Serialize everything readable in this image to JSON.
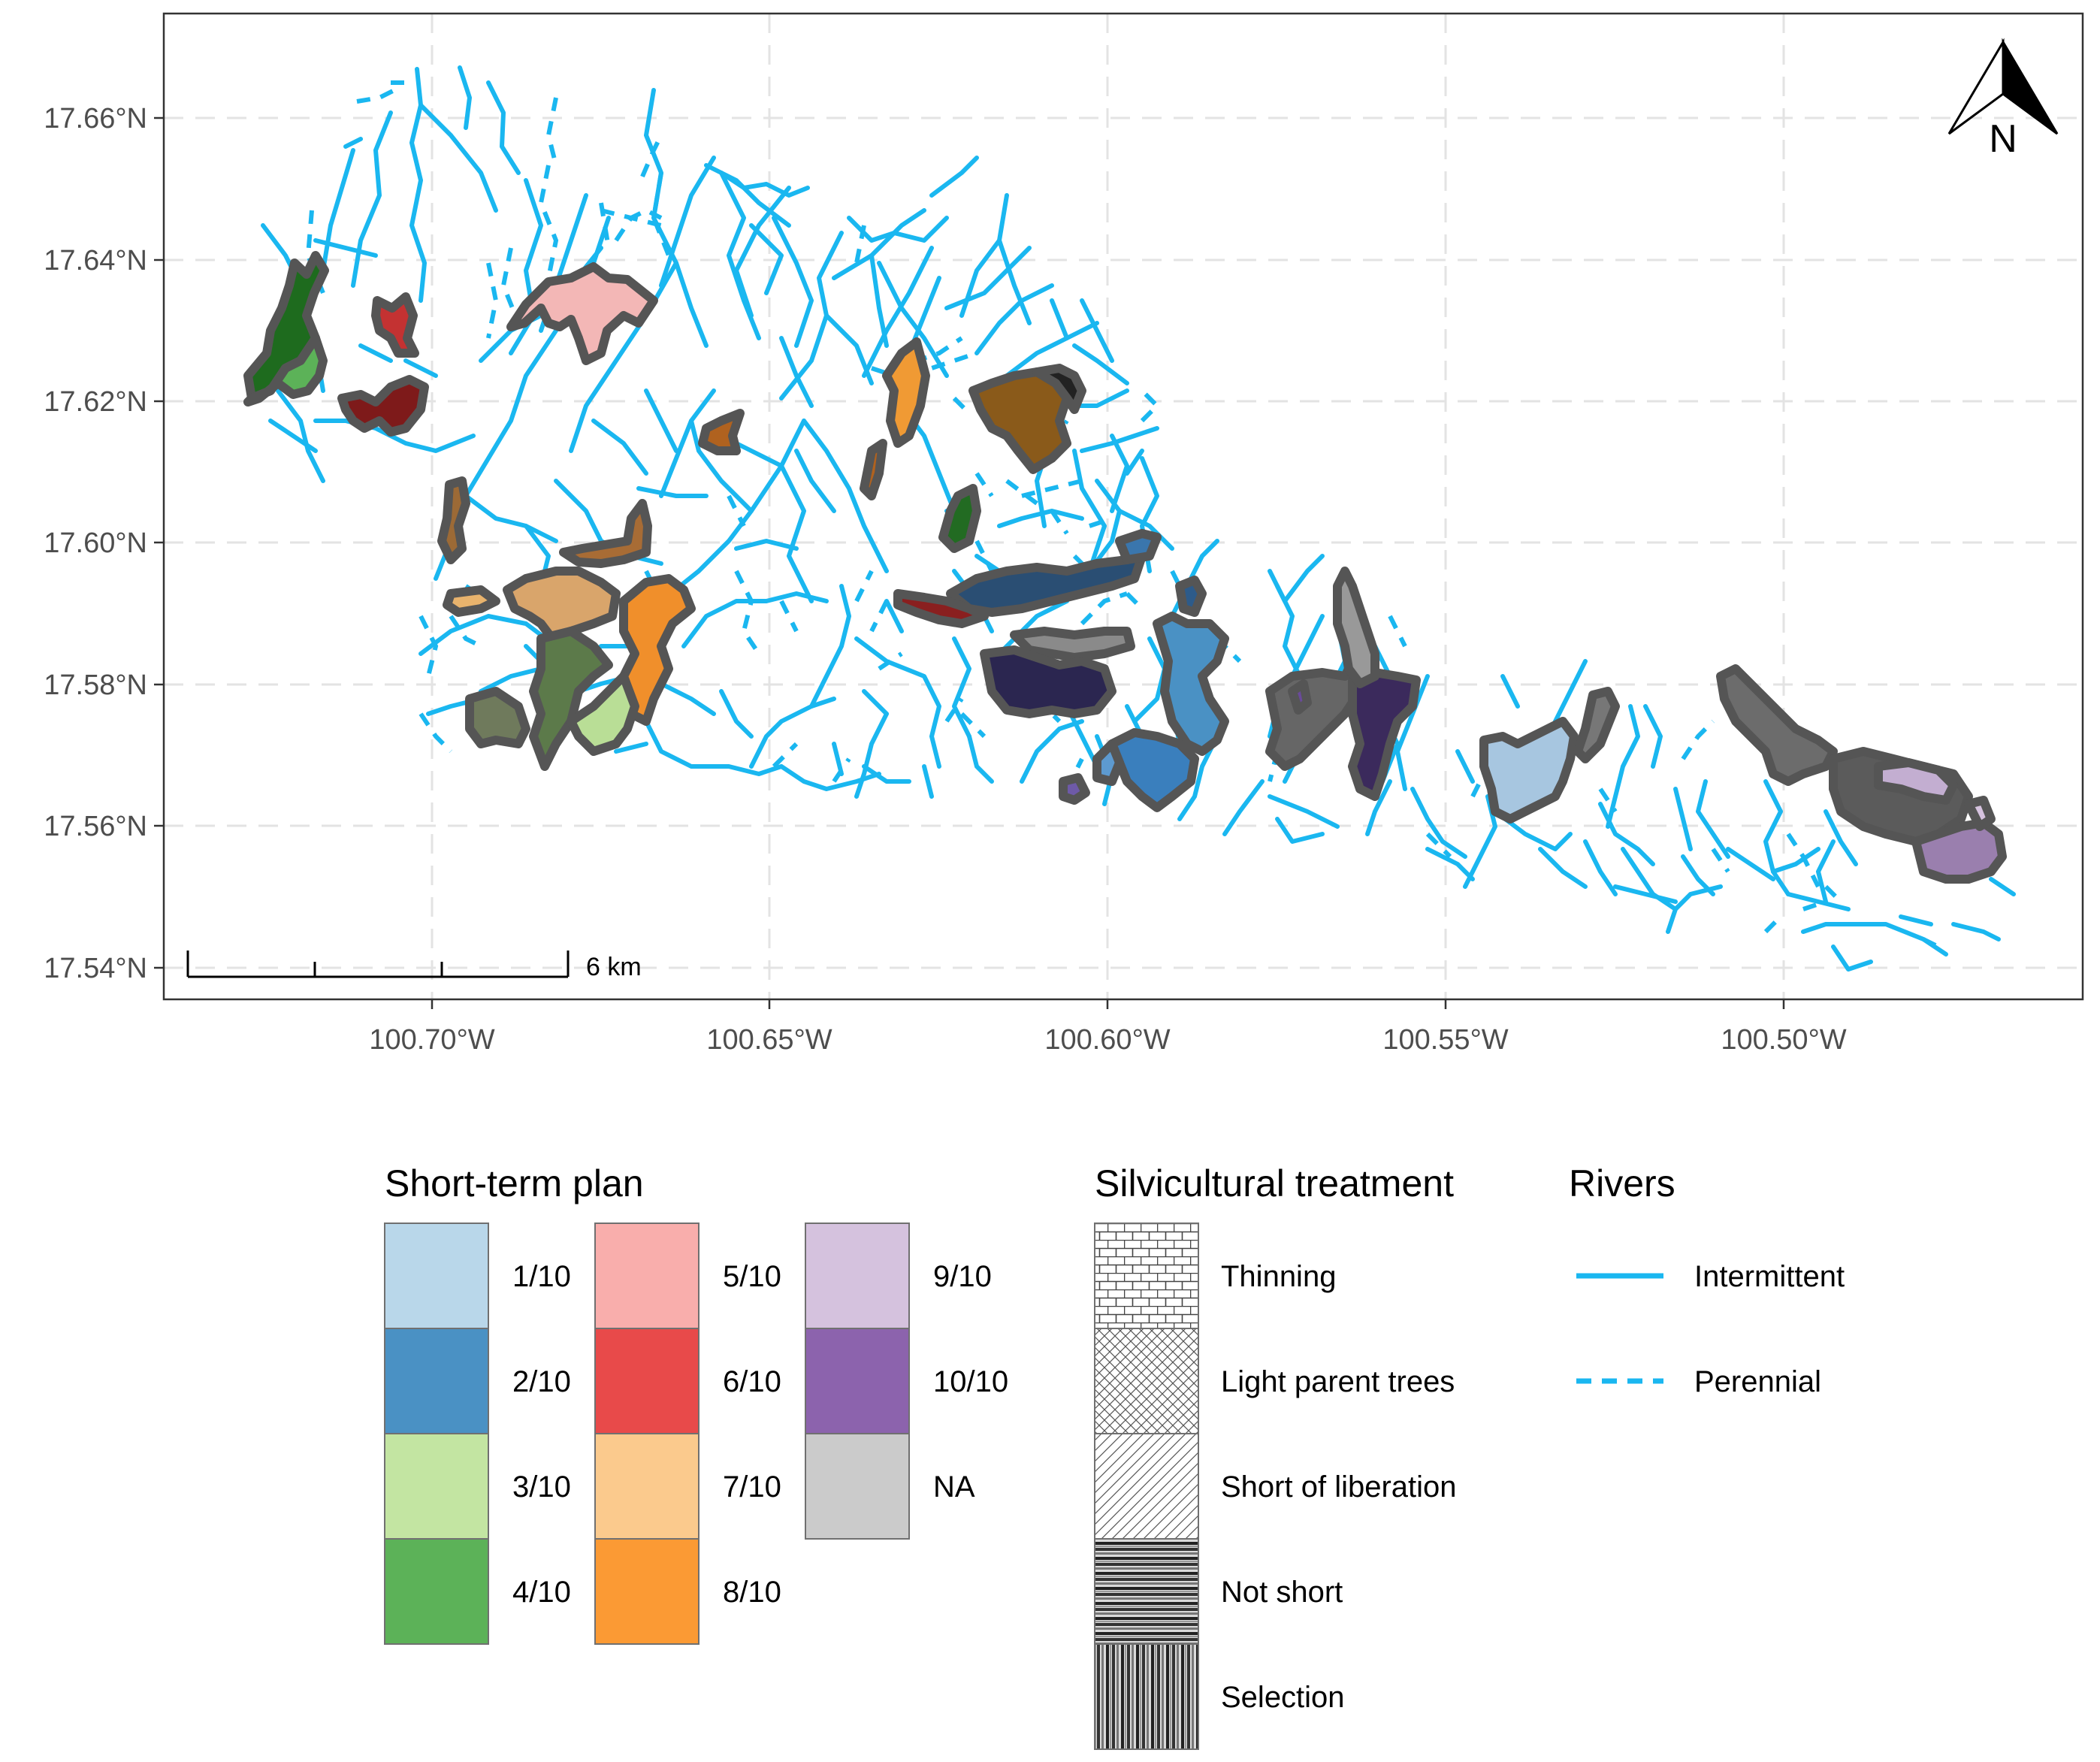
{
  "map": {
    "axis_x_ticks": [
      "100.70°W",
      "100.65°W",
      "100.60°W",
      "100.55°W",
      "100.50°W"
    ],
    "axis_y_ticks": [
      "17.66°N",
      "17.64°N",
      "17.62°N",
      "17.60°N",
      "17.58°N",
      "17.56°N",
      "17.54°N"
    ],
    "x_range": [
      -100.74,
      -100.457
    ],
    "y_range": [
      17.535,
      17.675
    ],
    "grid": "on, dashed",
    "north_arrow": "N",
    "scale_bar_label": "6 km"
  },
  "legend": {
    "short_term_plan": {
      "title": "Short-term plan",
      "items": [
        {
          "label": "1/10",
          "color": "#b9d7ea"
        },
        {
          "label": "2/10",
          "color": "#4a91c4"
        },
        {
          "label": "3/10",
          "color": "#c3e5a2"
        },
        {
          "label": "4/10",
          "color": "#5cb258"
        },
        {
          "label": "5/10",
          "color": "#f9aeac"
        },
        {
          "label": "6/10",
          "color": "#e84a4a"
        },
        {
          "label": "7/10",
          "color": "#fbca8d"
        },
        {
          "label": "8/10",
          "color": "#fb9a34"
        },
        {
          "label": "9/10",
          "color": "#d5c2de"
        },
        {
          "label": "10/10",
          "color": "#8c63ad"
        },
        {
          "label": "NA",
          "color": "#cbcbcb"
        }
      ]
    },
    "silvicultural_treatment": {
      "title": "Silvicultural treatment",
      "items": [
        {
          "label": "Thinning",
          "pattern": "brick"
        },
        {
          "label": "Light parent trees",
          "pattern": "crosshatch"
        },
        {
          "label": "Short of liberation",
          "pattern": "diagonal"
        },
        {
          "label": "Not short",
          "pattern": "horizontal-stripes"
        },
        {
          "label": "Selection",
          "pattern": "vertical-stripes"
        }
      ]
    },
    "rivers": {
      "title": "Rivers",
      "items": [
        {
          "label": "Intermittent",
          "style": "solid",
          "color": "#1ab7f0"
        },
        {
          "label": "Perennial",
          "style": "dashed",
          "color": "#1ab7f0"
        }
      ]
    }
  }
}
